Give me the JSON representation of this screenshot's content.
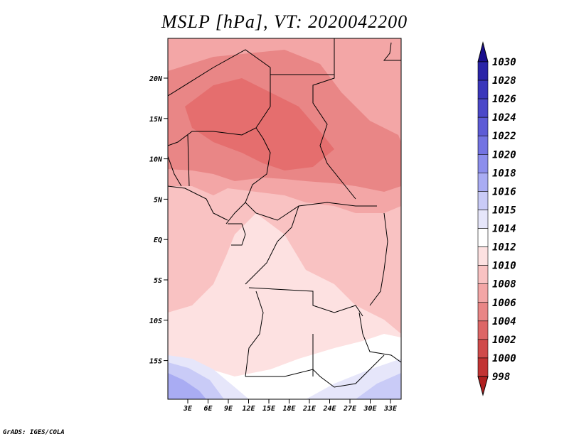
{
  "title": "MSLP [hPa], VT: 2020042200",
  "credit": "GrADS: IGES/COLA",
  "lat_labels": [
    "20N",
    "15N",
    "10N",
    "5N",
    "EQ",
    "5S",
    "10S",
    "15S"
  ],
  "lon_labels": [
    "3E",
    "6E",
    "9E",
    "12E",
    "15E",
    "18E",
    "21E",
    "24E",
    "27E",
    "30E",
    "33E"
  ],
  "colorbar": {
    "labels": [
      "1030",
      "1028",
      "1026",
      "1024",
      "1022",
      "1020",
      "1018",
      "1016",
      "1015",
      "1014",
      "1012",
      "1010",
      "1008",
      "1006",
      "1004",
      "1002",
      "1000",
      "998"
    ],
    "colors": [
      "#1a0f8c",
      "#2a24a8",
      "#3a36bb",
      "#4b48c9",
      "#5d5bd6",
      "#7373e2",
      "#8c8eec",
      "#a9acf3",
      "#c9cbf7",
      "#e6e6fa",
      "#ffffff",
      "#fde1e1",
      "#f9c2c2",
      "#f3a6a6",
      "#e98686",
      "#dd6666",
      "#d04a4a",
      "#c23333",
      "#b01f1f"
    ]
  },
  "map_colors": {
    "low_1004": "#e56e6e",
    "lvl_1006": "#e98686",
    "lvl_1008": "#f3a6a6",
    "lvl_1010": "#f9c2c2",
    "lvl_1012": "#fde1e1",
    "lvl_1014": "#ffffff",
    "lvl_1015": "#e6e6fa",
    "lvl_1016": "#c9cbf7",
    "lvl_1018": "#a9acf3"
  }
}
